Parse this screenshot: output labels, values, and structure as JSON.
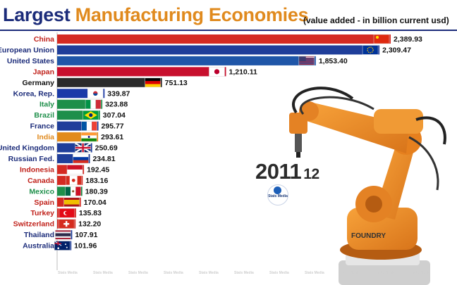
{
  "title": {
    "part1": "Largest",
    "part2": "Manufacturing Economies",
    "subtitle": "(value added - in billion current usd)"
  },
  "year": {
    "main": "2011",
    "sub": "12"
  },
  "brand": {
    "name": "Stats Media",
    "watermark": "Stats Media"
  },
  "colors": {
    "title_blue": "#1c2c7a",
    "title_orange": "#e08a1e"
  },
  "chart_data": {
    "type": "bar",
    "orientation": "horizontal",
    "categories": [
      "China",
      "European Union",
      "United States",
      "Japan",
      "Germany",
      "Korea, Rep.",
      "Italy",
      "Brazil",
      "France",
      "India",
      "United Kingdom",
      "Russian Fed.",
      "Indonesia",
      "Canada",
      "Mexico",
      "Spain",
      "Turkey",
      "Switzerland",
      "Thailand",
      "Australia"
    ],
    "values": [
      2389.93,
      2309.47,
      1853.4,
      1210.11,
      751.13,
      339.87,
      323.88,
      307.04,
      295.77,
      293.61,
      250.69,
      234.81,
      192.45,
      183.16,
      180.39,
      170.04,
      135.83,
      132.2,
      107.91,
      101.96
    ],
    "value_labels": [
      "2,389.93",
      "2,309.47",
      "1,853.40",
      "1,210.11",
      "751.13",
      "339.87",
      "323.88",
      "307.04",
      "295.77",
      "293.61",
      "250.69",
      "234.81",
      "192.45",
      "183.16",
      "180.39",
      "170.04",
      "135.83",
      "132.20",
      "107.91",
      "101.96"
    ],
    "bar_colors": [
      "#d42a22",
      "#1f3e9a",
      "#1f56a8",
      "#c8102e",
      "#2b2b2b",
      "#1a3aa8",
      "#1e8f4a",
      "#1e8f4a",
      "#1f3e9a",
      "#e28b1b",
      "#1f3e9a",
      "#1f3e9a",
      "#d42a22",
      "#d42a22",
      "#1e8f4a",
      "#d42a22",
      "#d42a22",
      "#d42a22",
      "#1f3e9a",
      "#1f3e9a"
    ],
    "label_colors": [
      "#c0211a",
      "#1c2c7a",
      "#1c2c7a",
      "#c0211a",
      "#111111",
      "#1c2c7a",
      "#1e8f4a",
      "#1e8f4a",
      "#1c2c7a",
      "#e08a1e",
      "#1c2c7a",
      "#1c2c7a",
      "#c0211a",
      "#c0211a",
      "#1e8f4a",
      "#c0211a",
      "#c0211a",
      "#c0211a",
      "#1c2c7a",
      "#1c2c7a"
    ],
    "flags": [
      "china-flag",
      "eu-flag",
      "usa-flag",
      "japan-flag",
      "germany-flag",
      "korea-flag",
      "italy-flag",
      "brazil-flag",
      "france-flag",
      "india-flag",
      "uk-flag",
      "russia-flag",
      "indonesia-flag",
      "canada-flag",
      "mexico-flag",
      "spain-flag",
      "turkey-flag",
      "switzerland-flag",
      "thailand-flag",
      "australia-flag"
    ],
    "xlim": [
      0,
      2400
    ]
  }
}
